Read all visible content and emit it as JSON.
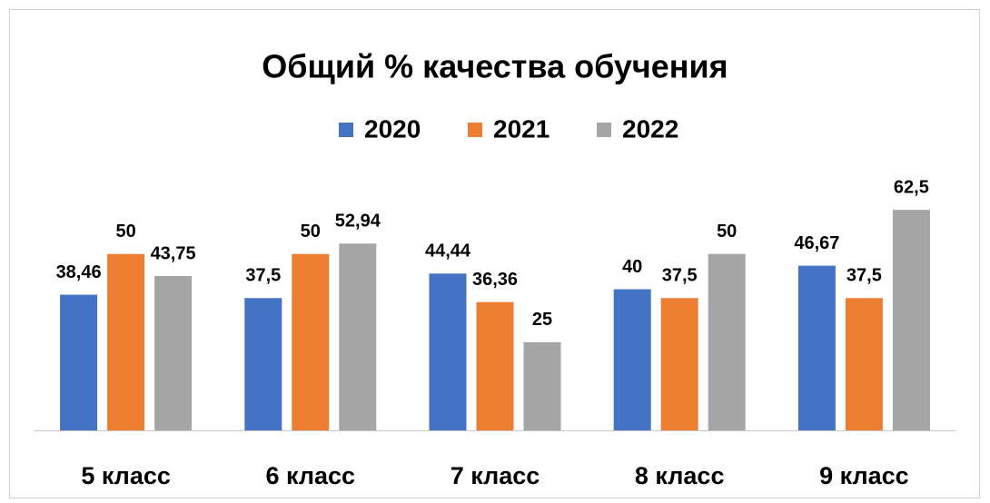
{
  "chart_data": {
    "type": "bar",
    "title": "Общий % качества обучения",
    "categories": [
      "5 класс",
      "6 класс",
      "7 класс",
      "8 класс",
      "9 класс"
    ],
    "series": [
      {
        "name": "2020",
        "color": "#4472c4",
        "values": [
          38.46,
          37.5,
          44.44,
          40,
          46.67
        ],
        "value_labels": [
          "38,46",
          "37,5",
          "44,44",
          "40",
          "46,67"
        ]
      },
      {
        "name": "2021",
        "color": "#ed7d31",
        "values": [
          50,
          50,
          36.36,
          37.5,
          37.5
        ],
        "value_labels": [
          "50",
          "50",
          "36,36",
          "37,5",
          "37,5"
        ]
      },
      {
        "name": "2022",
        "color": "#a5a5a5",
        "values": [
          43.75,
          52.94,
          25,
          50,
          62.5
        ],
        "value_labels": [
          "43,75",
          "52,94",
          "25",
          "50",
          "62,5"
        ]
      }
    ],
    "ylim": [
      0,
      70
    ],
    "legend": "top"
  }
}
